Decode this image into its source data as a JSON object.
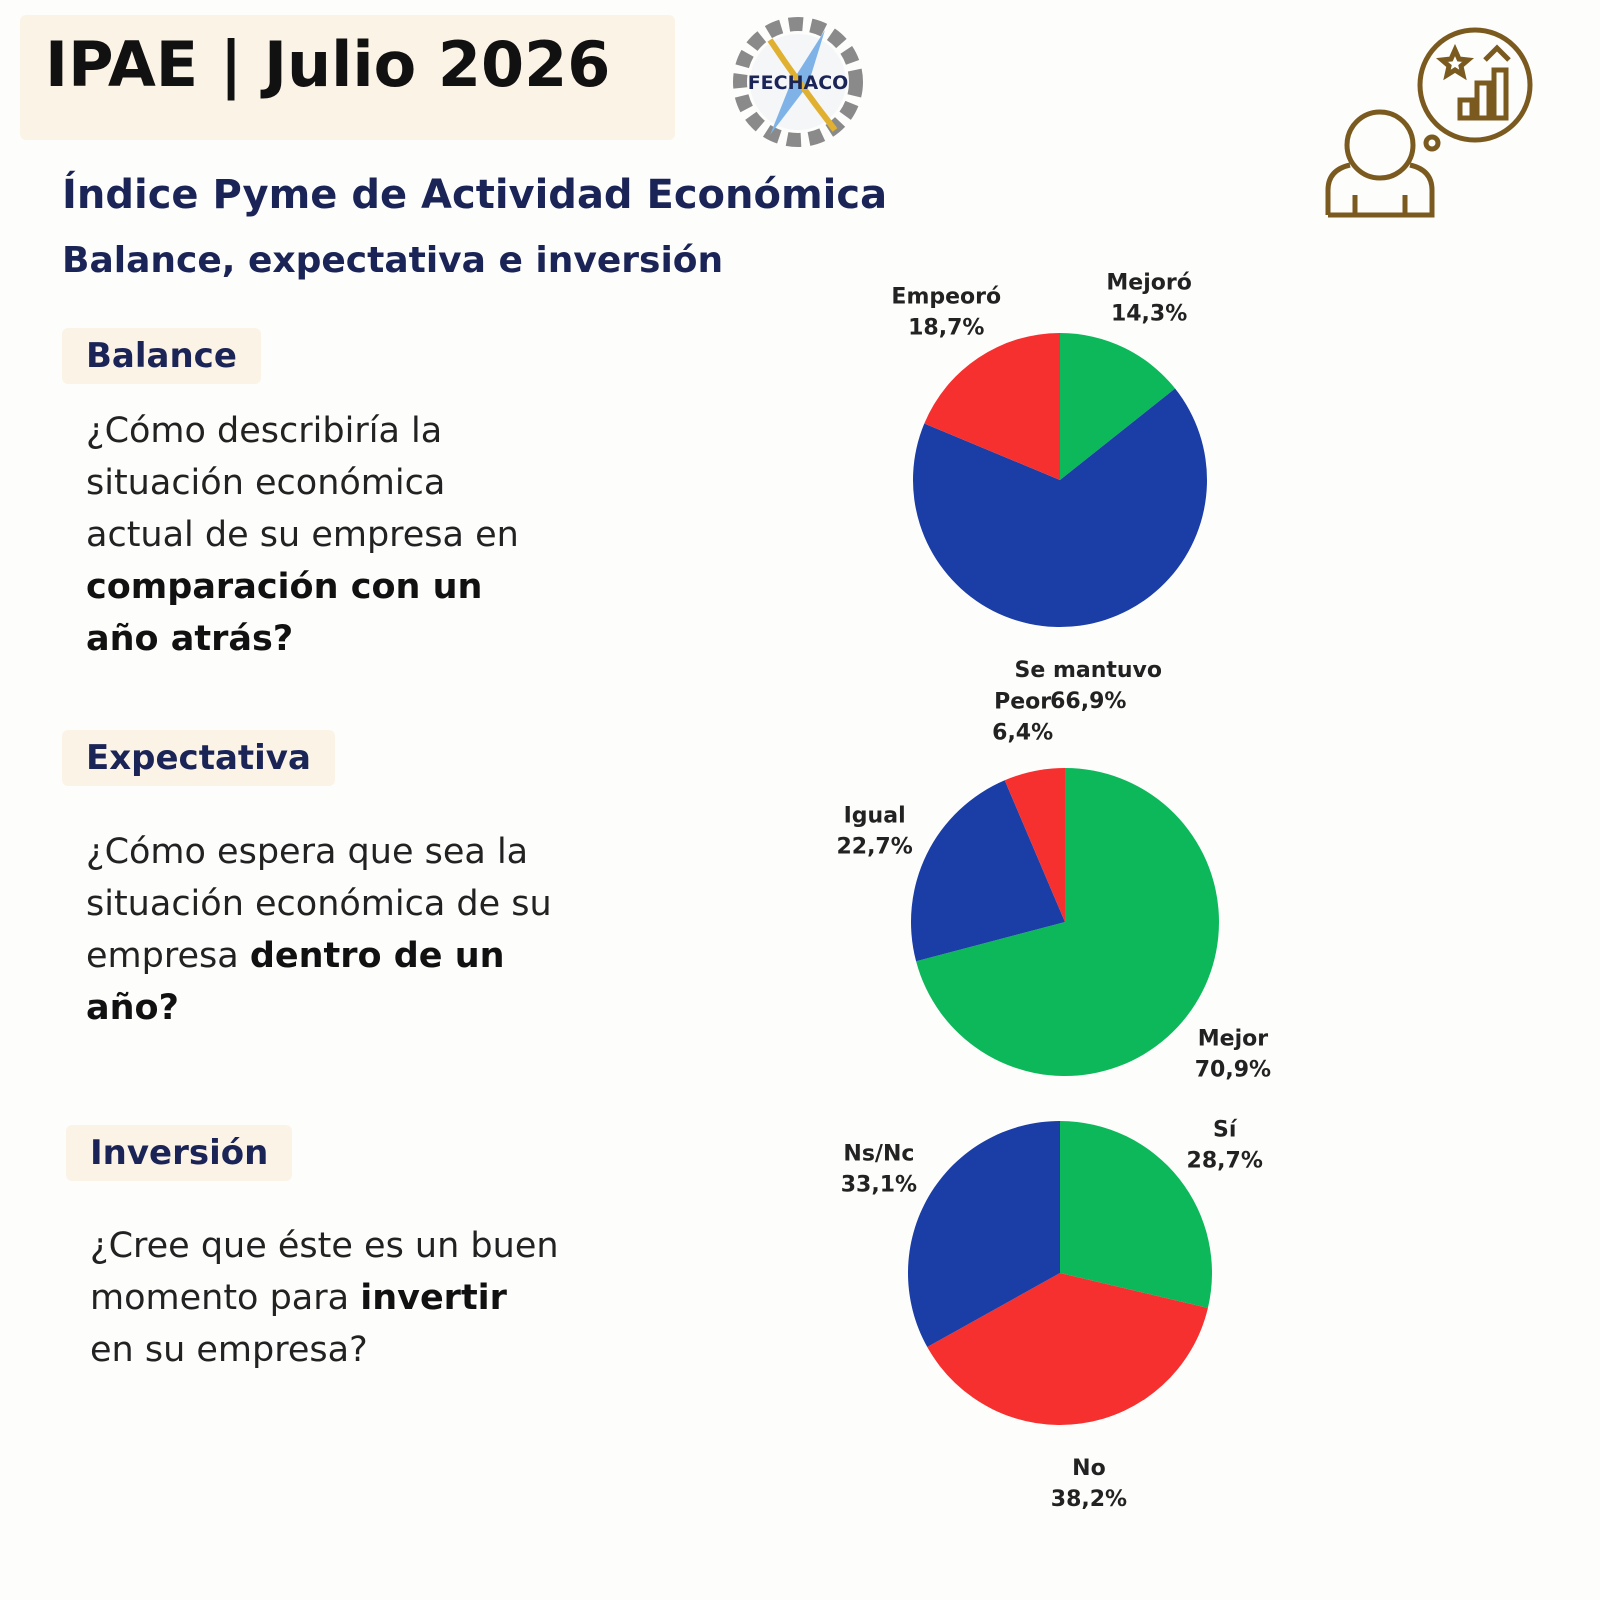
{
  "header": {
    "title": "IPAE | Julio 2026",
    "logo": "FECHACO",
    "subtitle": "Índice Pyme de Actividad Económica",
    "subtitle2": "Balance, expectativa e inversión"
  },
  "sections": [
    {
      "label": "Balance",
      "question": [
        {
          "text": "¿Cómo describiría la situación económica actual de su empresa en ",
          "bold": false
        },
        {
          "text": "comparación con un año atrás?",
          "bold": true
        }
      ]
    },
    {
      "label": "Expectativa",
      "question": [
        {
          "text": "¿Cómo espera que sea la situación económica de su empresa ",
          "bold": false
        },
        {
          "text": "dentro de un año?",
          "bold": true
        }
      ]
    },
    {
      "label": "Inversión",
      "question": [
        {
          "text": "¿Cree que éste es un buen momento para ",
          "bold": false
        },
        {
          "text": "invertir",
          "bold": true
        },
        {
          "text": " en su empresa?",
          "bold": false
        }
      ]
    }
  ],
  "chart_data": [
    {
      "type": "pie",
      "categories": [
        "Mejoró",
        "Se mantuvo",
        "Empeoró"
      ],
      "values": [
        14.3,
        66.9,
        18.7
      ],
      "value_labels": [
        "14,3%",
        "66,9%",
        "18,7%"
      ],
      "colors": [
        "#0db85a",
        "#1a3da6",
        "#f5302e"
      ]
    },
    {
      "type": "pie",
      "categories": [
        "Mejor",
        "Igual",
        "Peor"
      ],
      "values": [
        70.9,
        22.7,
        6.4
      ],
      "value_labels": [
        "70,9%",
        "22,7%",
        "6,4%"
      ],
      "colors": [
        "#0db85a",
        "#1a3da6",
        "#f5302e"
      ]
    },
    {
      "type": "pie",
      "categories": [
        "Sí",
        "No",
        "Ns/Nc"
      ],
      "values": [
        28.7,
        38.2,
        33.1
      ],
      "value_labels": [
        "28,7%",
        "38,2%",
        "33,1%"
      ],
      "colors": [
        "#0db85a",
        "#f5302e",
        "#1a3da6"
      ]
    }
  ]
}
